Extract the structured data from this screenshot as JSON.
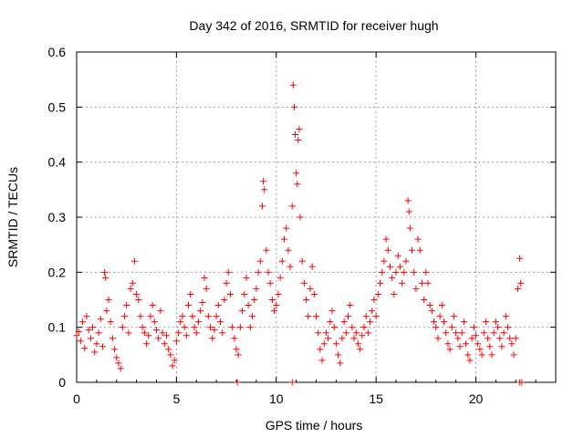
{
  "chart_data": {
    "type": "scatter",
    "title": "Day 342 of 2016, SRMTID for receiver hugh",
    "xlabel": "GPS time / hours",
    "ylabel": "SRMTID / TECUs",
    "xlim": [
      0,
      24
    ],
    "ylim": [
      0,
      0.6
    ],
    "x_ticks": [
      0,
      5,
      10,
      15,
      20
    ],
    "x_tick_labels": [
      "0",
      "5",
      "10",
      "15",
      "20"
    ],
    "y_ticks": [
      0,
      0.1,
      0.2,
      0.3,
      0.4,
      0.5,
      0.6
    ],
    "y_tick_labels": [
      "0",
      "0.1",
      "0.2",
      "0.3",
      "0.4",
      "0.5",
      "0.6"
    ],
    "grid": true,
    "marker": "plus",
    "color": "#ff0000",
    "series": [
      {
        "name": "SRMTID",
        "points": [
          [
            0.0,
            0.085
          ],
          [
            0.1,
            0.092
          ],
          [
            0.2,
            0.075
          ],
          [
            0.3,
            0.11
          ],
          [
            0.4,
            0.062
          ],
          [
            0.5,
            0.12
          ],
          [
            0.6,
            0.095
          ],
          [
            0.7,
            0.08
          ],
          [
            0.8,
            0.1
          ],
          [
            0.9,
            0.055
          ],
          [
            1.0,
            0.07
          ],
          [
            1.1,
            0.09
          ],
          [
            1.2,
            0.115
          ],
          [
            1.3,
            0.065
          ],
          [
            1.4,
            0.2
          ],
          [
            1.45,
            0.19
          ],
          [
            1.5,
            0.13
          ],
          [
            1.6,
            0.15
          ],
          [
            1.7,
            0.11
          ],
          [
            1.8,
            0.08
          ],
          [
            1.9,
            0.06
          ],
          [
            2.0,
            0.045
          ],
          [
            2.1,
            0.035
          ],
          [
            2.2,
            0.025
          ],
          [
            2.3,
            0.1
          ],
          [
            2.4,
            0.12
          ],
          [
            2.5,
            0.14
          ],
          [
            2.6,
            0.09
          ],
          [
            2.7,
            0.17
          ],
          [
            2.8,
            0.18
          ],
          [
            2.9,
            0.22
          ],
          [
            3.0,
            0.16
          ],
          [
            3.1,
            0.15
          ],
          [
            3.2,
            0.12
          ],
          [
            3.3,
            0.1
          ],
          [
            3.4,
            0.09
          ],
          [
            3.5,
            0.07
          ],
          [
            3.6,
            0.085
          ],
          [
            3.7,
            0.12
          ],
          [
            3.8,
            0.14
          ],
          [
            3.9,
            0.11
          ],
          [
            4.0,
            0.095
          ],
          [
            4.1,
            0.08
          ],
          [
            4.2,
            0.13
          ],
          [
            4.3,
            0.09
          ],
          [
            4.4,
            0.07
          ],
          [
            4.5,
            0.085
          ],
          [
            4.6,
            0.06
          ],
          [
            4.7,
            0.05
          ],
          [
            4.8,
            0.03
          ],
          [
            4.9,
            0.04
          ],
          [
            5.0,
            0.075
          ],
          [
            5.1,
            0.09
          ],
          [
            5.2,
            0.11
          ],
          [
            5.3,
            0.12
          ],
          [
            5.4,
            0.1
          ],
          [
            5.5,
            0.085
          ],
          [
            5.6,
            0.14
          ],
          [
            5.7,
            0.16
          ],
          [
            5.8,
            0.12
          ],
          [
            5.9,
            0.1
          ],
          [
            6.0,
            0.09
          ],
          [
            6.1,
            0.11
          ],
          [
            6.2,
            0.13
          ],
          [
            6.3,
            0.145
          ],
          [
            6.4,
            0.19
          ],
          [
            6.5,
            0.17
          ],
          [
            6.6,
            0.12
          ],
          [
            6.7,
            0.1
          ],
          [
            6.8,
            0.08
          ],
          [
            6.9,
            0.095
          ],
          [
            7.0,
            0.12
          ],
          [
            7.1,
            0.14
          ],
          [
            7.2,
            0.11
          ],
          [
            7.3,
            0.09
          ],
          [
            7.4,
            0.15
          ],
          [
            7.5,
            0.18
          ],
          [
            7.6,
            0.2
          ],
          [
            7.7,
            0.16
          ],
          [
            7.8,
            0.1
          ],
          [
            7.9,
            0.08
          ],
          [
            8.0,
            0.06
          ],
          [
            8.1,
            0.05
          ],
          [
            8.2,
            0.1
          ],
          [
            8.3,
            0.13
          ],
          [
            8.4,
            0.16
          ],
          [
            8.5,
            0.19
          ],
          [
            8.6,
            0.14
          ],
          [
            8.7,
            0.1
          ],
          [
            8.8,
            0.12
          ],
          [
            8.9,
            0.15
          ],
          [
            9.0,
            0.17
          ],
          [
            9.1,
            0.2
          ],
          [
            9.2,
            0.22
          ],
          [
            9.3,
            0.32
          ],
          [
            9.35,
            0.365
          ],
          [
            9.4,
            0.35
          ],
          [
            9.5,
            0.24
          ],
          [
            9.6,
            0.2
          ],
          [
            9.7,
            0.18
          ],
          [
            9.8,
            0.15
          ],
          [
            9.9,
            0.13
          ],
          [
            10.0,
            0.14
          ],
          [
            10.1,
            0.16
          ],
          [
            10.2,
            0.19
          ],
          [
            10.3,
            0.22
          ],
          [
            10.4,
            0.26
          ],
          [
            10.5,
            0.28
          ],
          [
            10.6,
            0.24
          ],
          [
            10.7,
            0.21
          ],
          [
            10.8,
            0.32
          ],
          [
            10.85,
            0.54
          ],
          [
            10.9,
            0.5
          ],
          [
            10.95,
            0.45
          ],
          [
            11.0,
            0.38
          ],
          [
            11.05,
            0.36
          ],
          [
            11.1,
            0.44
          ],
          [
            11.15,
            0.46
          ],
          [
            11.2,
            0.3
          ],
          [
            11.3,
            0.22
          ],
          [
            11.4,
            0.18
          ],
          [
            11.5,
            0.15
          ],
          [
            11.6,
            0.12
          ],
          [
            11.7,
            0.17
          ],
          [
            11.8,
            0.21
          ],
          [
            11.9,
            0.16
          ],
          [
            12.0,
            0.12
          ],
          [
            12.1,
            0.09
          ],
          [
            12.2,
            0.06
          ],
          [
            12.3,
            0.04
          ],
          [
            12.4,
            0.07
          ],
          [
            12.5,
            0.09
          ],
          [
            12.6,
            0.08
          ],
          [
            12.7,
            0.11
          ],
          [
            12.8,
            0.13
          ],
          [
            12.9,
            0.1
          ],
          [
            13.0,
            0.07
          ],
          [
            13.1,
            0.05
          ],
          [
            13.2,
            0.035
          ],
          [
            13.3,
            0.08
          ],
          [
            13.4,
            0.11
          ],
          [
            13.5,
            0.09
          ],
          [
            13.6,
            0.12
          ],
          [
            13.7,
            0.14
          ],
          [
            13.8,
            0.1
          ],
          [
            13.9,
            0.08
          ],
          [
            14.0,
            0.09
          ],
          [
            14.1,
            0.07
          ],
          [
            14.2,
            0.06
          ],
          [
            14.3,
            0.085
          ],
          [
            14.4,
            0.1
          ],
          [
            14.5,
            0.12
          ],
          [
            14.6,
            0.09
          ],
          [
            14.7,
            0.11
          ],
          [
            14.8,
            0.13
          ],
          [
            14.9,
            0.15
          ],
          [
            15.0,
            0.12
          ],
          [
            15.1,
            0.16
          ],
          [
            15.2,
            0.18
          ],
          [
            15.3,
            0.2
          ],
          [
            15.4,
            0.22
          ],
          [
            15.5,
            0.26
          ],
          [
            15.6,
            0.24
          ],
          [
            15.7,
            0.21
          ],
          [
            15.8,
            0.19
          ],
          [
            15.9,
            0.16
          ],
          [
            16.0,
            0.2
          ],
          [
            16.1,
            0.23
          ],
          [
            16.2,
            0.21
          ],
          [
            16.3,
            0.18
          ],
          [
            16.4,
            0.2
          ],
          [
            16.5,
            0.22
          ],
          [
            16.6,
            0.33
          ],
          [
            16.65,
            0.31
          ],
          [
            16.7,
            0.28
          ],
          [
            16.8,
            0.24
          ],
          [
            16.9,
            0.2
          ],
          [
            17.0,
            0.17
          ],
          [
            17.1,
            0.26
          ],
          [
            17.2,
            0.24
          ],
          [
            17.3,
            0.18
          ],
          [
            17.4,
            0.15
          ],
          [
            17.5,
            0.2
          ],
          [
            17.6,
            0.18
          ],
          [
            17.7,
            0.14
          ],
          [
            17.8,
            0.13
          ],
          [
            17.9,
            0.11
          ],
          [
            18.0,
            0.1
          ],
          [
            18.1,
            0.08
          ],
          [
            18.2,
            0.12
          ],
          [
            18.3,
            0.14
          ],
          [
            18.4,
            0.11
          ],
          [
            18.5,
            0.09
          ],
          [
            18.6,
            0.07
          ],
          [
            18.7,
            0.06
          ],
          [
            18.8,
            0.1
          ],
          [
            18.9,
            0.12
          ],
          [
            19.0,
            0.09
          ],
          [
            19.1,
            0.08
          ],
          [
            19.2,
            0.065
          ],
          [
            19.3,
            0.09
          ],
          [
            19.4,
            0.11
          ],
          [
            19.5,
            0.07
          ],
          [
            19.6,
            0.05
          ],
          [
            19.7,
            0.04
          ],
          [
            19.8,
            0.08
          ],
          [
            19.9,
            0.1
          ],
          [
            20.0,
            0.085
          ],
          [
            20.1,
            0.07
          ],
          [
            20.2,
            0.06
          ],
          [
            20.3,
            0.05
          ],
          [
            20.4,
            0.09
          ],
          [
            20.5,
            0.11
          ],
          [
            20.6,
            0.08
          ],
          [
            20.7,
            0.065
          ],
          [
            20.8,
            0.05
          ],
          [
            20.9,
            0.09
          ],
          [
            21.0,
            0.11
          ],
          [
            21.1,
            0.1
          ],
          [
            21.2,
            0.08
          ],
          [
            21.3,
            0.065
          ],
          [
            21.4,
            0.09
          ],
          [
            21.5,
            0.12
          ],
          [
            21.6,
            0.1
          ],
          [
            21.7,
            0.08
          ],
          [
            21.8,
            0.07
          ],
          [
            21.9,
            0.05
          ],
          [
            22.0,
            0.08
          ],
          [
            22.1,
            0.17
          ],
          [
            22.2,
            0.225
          ],
          [
            22.25,
            0.18
          ],
          [
            8.05,
            0.0
          ],
          [
            10.8,
            0.0
          ],
          [
            22.2,
            0.0
          ],
          [
            22.3,
            0.0
          ]
        ]
      }
    ]
  }
}
